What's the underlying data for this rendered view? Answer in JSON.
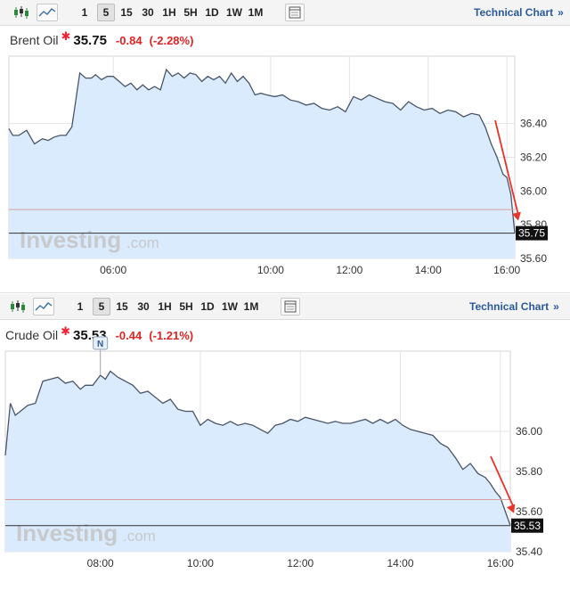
{
  "panels": [
    {
      "toolbar": {
        "intervals": [
          "1",
          "5",
          "15",
          "30",
          "1H",
          "5H",
          "1D",
          "1W",
          "1M"
        ],
        "selected": "5",
        "technical_chart": "Technical Chart",
        "chevron": "»"
      },
      "quote": {
        "name": "Brent Oil",
        "last": "35.75",
        "change": "-0.84",
        "change_pct": "(-2.28%)"
      },
      "watermark": {
        "brand": "Investing",
        "suffix": ".com"
      },
      "price_tag": "35.75"
    },
    {
      "toolbar": {
        "intervals": [
          "1",
          "5",
          "15",
          "30",
          "1H",
          "5H",
          "1D",
          "1W",
          "1M"
        ],
        "selected": "5",
        "technical_chart": "Technical Chart",
        "chevron": "»"
      },
      "quote": {
        "name": "Crude Oil",
        "last": "35.53",
        "change": "-0.44",
        "change_pct": "(-1.21%)"
      },
      "watermark": {
        "brand": "Investing",
        "suffix": ".com"
      },
      "price_tag": "35.53",
      "news_marker": "N"
    }
  ],
  "colors": {
    "line": "#4a5568",
    "area": "#d9ebfc",
    "grid": "#e4e4e4",
    "last_price_line": "#333333",
    "prev_close_line": "#d9a0a0",
    "arrow": "#e8322b",
    "price_tag_bg": "#111111",
    "negative": "#e02424",
    "link": "#2a5a9c"
  },
  "chart_data": [
    {
      "type": "area",
      "title": "Brent Oil",
      "x_ticks": [
        "06:00",
        "10:00",
        "12:00",
        "14:00",
        "16:00"
      ],
      "x_tick_hours": [
        6,
        10,
        12,
        14,
        16
      ],
      "y_ticks": [
        36.4,
        36.2,
        36.0,
        35.8,
        35.6
      ],
      "ylim": [
        35.6,
        36.8
      ],
      "xlim": [
        3.35,
        16.2
      ],
      "prev_close": 35.89,
      "last": 35.75,
      "x": [
        3.35,
        3.45,
        3.6,
        3.8,
        4.0,
        4.2,
        4.35,
        4.5,
        4.65,
        4.8,
        4.95,
        5.15,
        5.3,
        5.45,
        5.55,
        5.7,
        5.85,
        6.0,
        6.15,
        6.3,
        6.45,
        6.6,
        6.75,
        6.9,
        7.05,
        7.2,
        7.35,
        7.5,
        7.65,
        7.8,
        7.95,
        8.1,
        8.25,
        8.4,
        8.55,
        8.7,
        8.85,
        9.0,
        9.15,
        9.3,
        9.45,
        9.6,
        9.75,
        9.9,
        10.1,
        10.3,
        10.5,
        10.7,
        10.9,
        11.1,
        11.3,
        11.5,
        11.7,
        11.9,
        12.1,
        12.3,
        12.5,
        12.7,
        12.9,
        13.1,
        13.3,
        13.5,
        13.7,
        13.9,
        14.1,
        14.3,
        14.5,
        14.7,
        14.9,
        15.1,
        15.3,
        15.45,
        15.6,
        15.75,
        15.9,
        16.0,
        16.1,
        16.2
      ],
      "y": [
        36.37,
        36.33,
        36.33,
        36.36,
        36.28,
        36.31,
        36.3,
        36.32,
        36.33,
        36.33,
        36.38,
        36.7,
        36.67,
        36.67,
        36.69,
        36.66,
        36.68,
        36.68,
        36.65,
        36.62,
        36.64,
        36.6,
        36.63,
        36.6,
        36.62,
        36.6,
        36.72,
        36.68,
        36.7,
        36.67,
        36.7,
        36.69,
        36.65,
        36.68,
        36.66,
        36.68,
        36.64,
        36.7,
        36.65,
        36.68,
        36.64,
        36.57,
        36.58,
        36.57,
        36.56,
        36.57,
        36.54,
        36.53,
        36.51,
        36.52,
        36.49,
        36.48,
        36.5,
        36.47,
        36.56,
        36.54,
        36.57,
        36.55,
        36.53,
        36.52,
        36.48,
        36.53,
        36.5,
        36.48,
        36.49,
        36.46,
        36.48,
        36.47,
        36.44,
        36.46,
        36.45,
        36.38,
        36.28,
        36.2,
        36.1,
        36.08,
        35.98,
        35.75
      ]
    },
    {
      "type": "area",
      "title": "Crude Oil",
      "x_ticks": [
        "08:00",
        "10:00",
        "12:00",
        "14:00",
        "16:00"
      ],
      "x_tick_hours": [
        8,
        10,
        12,
        14,
        16
      ],
      "y_ticks": [
        36.0,
        35.8,
        35.6,
        35.4
      ],
      "ylim": [
        35.4,
        36.4
      ],
      "xlim": [
        6.1,
        16.2
      ],
      "prev_close": 35.66,
      "last": 35.53,
      "x": [
        6.1,
        6.2,
        6.3,
        6.4,
        6.55,
        6.7,
        6.85,
        7.0,
        7.15,
        7.3,
        7.45,
        7.6,
        7.7,
        7.85,
        8.0,
        8.1,
        8.2,
        8.35,
        8.5,
        8.65,
        8.8,
        8.95,
        9.1,
        9.25,
        9.4,
        9.55,
        9.7,
        9.85,
        10.0,
        10.15,
        10.3,
        10.45,
        10.6,
        10.75,
        10.9,
        11.05,
        11.2,
        11.35,
        11.5,
        11.65,
        11.8,
        11.95,
        12.1,
        12.25,
        12.4,
        12.55,
        12.7,
        12.85,
        13.0,
        13.15,
        13.3,
        13.45,
        13.6,
        13.75,
        13.9,
        14.05,
        14.2,
        14.35,
        14.5,
        14.65,
        14.8,
        14.95,
        15.1,
        15.25,
        15.4,
        15.55,
        15.7,
        15.8,
        15.9,
        16.0,
        16.1,
        16.2
      ],
      "y": [
        35.88,
        36.14,
        36.08,
        36.1,
        36.13,
        36.14,
        36.25,
        36.26,
        36.27,
        36.24,
        36.25,
        36.21,
        36.23,
        36.23,
        36.28,
        36.26,
        36.3,
        36.27,
        36.25,
        36.23,
        36.19,
        36.2,
        36.17,
        36.14,
        36.16,
        36.11,
        36.1,
        36.1,
        36.03,
        36.06,
        36.04,
        36.03,
        36.05,
        36.03,
        36.04,
        36.03,
        36.01,
        35.99,
        36.03,
        36.04,
        36.06,
        36.05,
        36.07,
        36.06,
        36.05,
        36.04,
        36.05,
        36.04,
        36.04,
        36.05,
        36.06,
        36.04,
        36.06,
        36.04,
        36.06,
        36.03,
        36.01,
        36.0,
        35.99,
        35.98,
        35.94,
        35.92,
        35.87,
        35.81,
        35.84,
        35.79,
        35.77,
        35.74,
        35.7,
        35.67,
        35.6,
        35.53
      ]
    }
  ]
}
